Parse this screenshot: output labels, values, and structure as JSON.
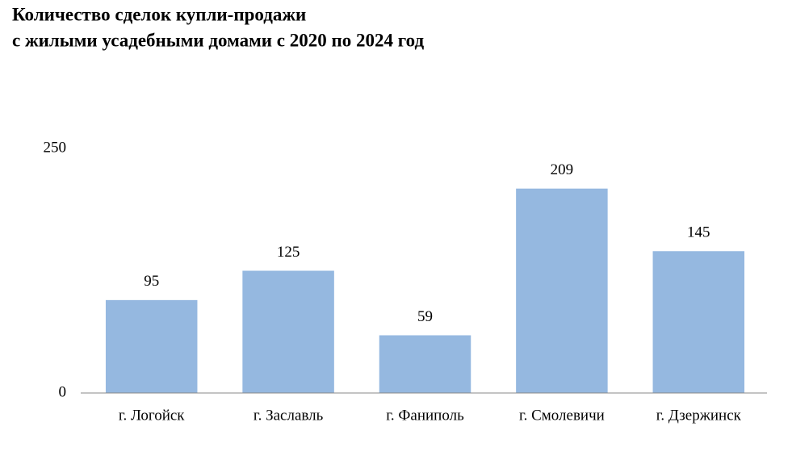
{
  "chart_data": {
    "type": "bar",
    "title": [
      "Количество сделок купли-продажи",
      "с жилыми усадебными домами с 2020 по 2024 год"
    ],
    "categories": [
      "г. Логойск",
      "г. Заславль",
      "г. Фаниполь",
      "г. Смолевичи",
      "г. Дзержинск"
    ],
    "values": [
      95,
      125,
      59,
      209,
      145
    ],
    "color": "#95b8e0",
    "ylim": [
      0,
      250
    ],
    "yticks": [
      0,
      250
    ],
    "grid": false
  }
}
